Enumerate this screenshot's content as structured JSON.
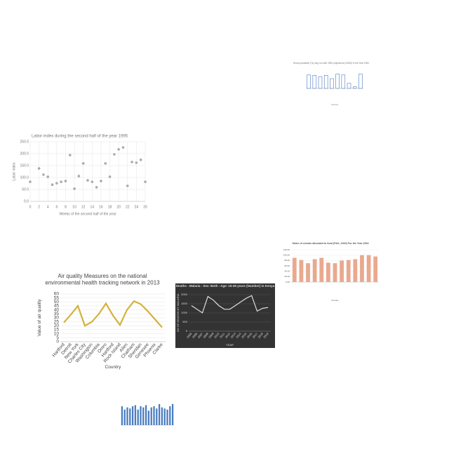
{
  "chart_data": [
    {
      "type": "bar",
      "title": "Rural population (%) long run with 2050 projections (OWID) in the Year 1960",
      "x_label": "Country",
      "categories": [
        null,
        null,
        null,
        null,
        null,
        null,
        null,
        null,
        null,
        null
      ],
      "values": [
        80,
        78,
        70,
        78,
        58,
        85,
        80,
        30,
        10,
        85
      ],
      "color": "#4a7cc0",
      "outline": true,
      "ylim": [
        0,
        100
      ]
    },
    {
      "type": "scatter",
      "title": "Labor index during the second half of the year 1995",
      "x_label": "Weeks of the second half of the year",
      "y_label": "Labor index",
      "x": [
        0,
        2,
        3,
        4,
        5,
        6,
        7,
        8,
        9,
        10,
        11,
        12,
        13,
        14,
        15,
        16,
        17,
        18,
        19,
        20,
        21,
        22,
        23,
        24,
        25,
        26
      ],
      "values": [
        82,
        138,
        112,
        103,
        70,
        76,
        82,
        85,
        194,
        53,
        106,
        159,
        88,
        82,
        59,
        85,
        159,
        103,
        197,
        218,
        226,
        65,
        165,
        162,
        174,
        82
      ],
      "color": "#aaaaaa",
      "xlim": [
        0,
        26
      ],
      "xticks": [
        0,
        2,
        4,
        6,
        8,
        10,
        12,
        14,
        16,
        18,
        20,
        22,
        24,
        26
      ],
      "ylim": [
        0,
        250
      ],
      "yticks": [
        {
          "value": 0,
          "label": "0.0"
        },
        {
          "value": 50,
          "label": "50.0"
        },
        {
          "value": 100,
          "label": "100.0"
        },
        {
          "value": 150,
          "label": "150.0"
        },
        {
          "value": 200,
          "label": "200.0"
        },
        {
          "value": 250,
          "label": "250.0"
        }
      ],
      "grid": true
    },
    {
      "type": "bar",
      "title": "Share of cereals allocated to food (FAO, 2020) For the Year 2004",
      "x_label": "Country",
      "categories": [
        null,
        null,
        null,
        null,
        null,
        null,
        null,
        null,
        null,
        null,
        null,
        null,
        null
      ],
      "values": [
        90,
        82,
        70,
        85,
        90,
        72,
        70,
        80,
        82,
        85,
        100,
        100,
        95
      ],
      "color": "#e9a98e",
      "ylim": [
        0,
        120
      ],
      "yticks": [
        {
          "value": 0,
          "label": "0.00"
        },
        {
          "value": 20,
          "label": "20.00"
        },
        {
          "value": 40,
          "label": "40.00"
        },
        {
          "value": 60,
          "label": "60.00"
        },
        {
          "value": 80,
          "label": "80.00"
        },
        {
          "value": 100,
          "label": "100.00"
        },
        {
          "value": 120,
          "label": "120.00"
        }
      ],
      "grid": true
    },
    {
      "type": "line",
      "title": "Air quality Measures on the national environmental health tracking network in 2013",
      "x_label": "Country",
      "y_label": "Value of air quality",
      "categories": [
        "Hartford",
        "Detroit",
        "New York",
        "Charles City",
        "Washington",
        "Columbia",
        "Omro",
        "Hartford",
        "Rock Island",
        "Allen",
        "Chatham",
        "Sheridan",
        "Genesee",
        "Phoenix",
        "Clarke"
      ],
      "values": [
        24,
        34,
        45,
        20,
        25,
        35,
        48,
        33,
        21,
        40,
        51,
        47,
        38,
        28,
        18
      ],
      "color": "#d4b23a",
      "ylim": [
        0,
        60
      ],
      "yticks": [
        0,
        5,
        10,
        15,
        20,
        25,
        30,
        35,
        40,
        45,
        50,
        55,
        60
      ],
      "grid": true
    },
    {
      "type": "line",
      "title": "Deaths - Malaria - Sex: Both - Age: 15-49 years (Number) in Kenya",
      "x_label": "YEAR",
      "y_label": "NO OF DEATHS BY MALARIA",
      "categories": [
        "2005",
        "2006",
        "2007",
        "2008",
        "2009",
        "2010",
        "2011",
        "2012",
        "2013",
        "2014",
        "2015",
        "2016",
        "2017",
        "2018",
        "2019"
      ],
      "values": [
        1400,
        1200,
        1000,
        1900,
        1700,
        1400,
        1200,
        1200,
        1400,
        1600,
        1800,
        1950,
        1100,
        1250,
        1300
      ],
      "color": "#dddddd",
      "ylim": [
        0,
        2000
      ],
      "yticks": [
        0,
        500,
        1000,
        1500,
        2000
      ],
      "grid": true
    },
    {
      "type": "bar",
      "categories": [
        null,
        null,
        null,
        null,
        null,
        null,
        null,
        null,
        null,
        null,
        null,
        null,
        null,
        null,
        null,
        null,
        null,
        null,
        null,
        null
      ],
      "values": [
        85,
        70,
        80,
        75,
        85,
        90,
        70,
        85,
        80,
        90,
        65,
        80,
        85,
        75,
        95,
        80,
        75,
        70,
        85,
        95
      ],
      "color": "#4a7cc0",
      "ylim": [
        0,
        120
      ],
      "grid": true
    }
  ]
}
